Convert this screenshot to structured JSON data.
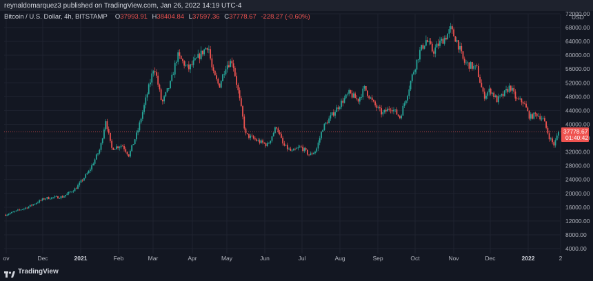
{
  "header": {
    "publisher_line": "reynaldomarquez3 published on TradingView.com, Jan 26, 2022 14:19 UTC-4"
  },
  "legend": {
    "symbol": "Bitcoin / U.S. Dollar, 4h, BITSTAMP",
    "o_label": "O",
    "o_value": "37993.91",
    "h_label": "H",
    "h_value": "38404.84",
    "l_label": "L",
    "l_value": "37597.36",
    "c_label": "C",
    "c_value": "37778.67",
    "change": "-228.27 (-0.60%)"
  },
  "axis": {
    "currency": "USD",
    "price_label": "37778.67",
    "countdown": "01:40:42"
  },
  "footer": {
    "brand": "TradingView"
  },
  "colors": {
    "up": "#26a69a",
    "down": "#ef5350",
    "background": "#131722",
    "grid": "#1f2330"
  },
  "chart_data": {
    "type": "candlestick",
    "title": "Bitcoin / U.S. Dollar, 4h, BITSTAMP",
    "ylim": [
      4000,
      72000
    ],
    "yticks": [
      4000,
      8000,
      12000,
      16000,
      20000,
      24000,
      28000,
      32000,
      36000,
      40000,
      44000,
      48000,
      52000,
      56000,
      60000,
      64000,
      68000,
      72000
    ],
    "ytick_labels": [
      "4000.00",
      "8000.00",
      "12000.00",
      "16000.00",
      "20000.00",
      "24000.00",
      "28000.00",
      "32000.00",
      "36000.00",
      "40000.00",
      "44000.00",
      "48000.00",
      "52000.00",
      "56000.00",
      "60000.00",
      "64000.00",
      "68000.00",
      "72000.00"
    ],
    "xticks": [
      "ov",
      "Dec",
      "2021",
      "Feb",
      "Mar",
      "Apr",
      "May",
      "Jun",
      "Jul",
      "Aug",
      "Sep",
      "Oct",
      "Nov",
      "Dec",
      "2022",
      "2"
    ],
    "xtick_bold": [
      false,
      false,
      true,
      false,
      false,
      false,
      false,
      false,
      false,
      false,
      false,
      false,
      false,
      false,
      true,
      false
    ],
    "last_price": 37778.67,
    "path_points": [
      {
        "t": 0.0,
        "p": 13800
      },
      {
        "t": 1.0,
        "p": 16000
      },
      {
        "t": 1.8,
        "p": 18600
      },
      {
        "t": 2.6,
        "p": 19000
      },
      {
        "t": 3.2,
        "p": 21500
      },
      {
        "t": 3.8,
        "p": 26500
      },
      {
        "t": 4.3,
        "p": 33000
      },
      {
        "t": 4.55,
        "p": 41500
      },
      {
        "t": 4.8,
        "p": 33000
      },
      {
        "t": 5.3,
        "p": 34000
      },
      {
        "t": 5.6,
        "p": 31000
      },
      {
        "t": 6.0,
        "p": 38000
      },
      {
        "t": 6.4,
        "p": 48000
      },
      {
        "t": 6.75,
        "p": 57000
      },
      {
        "t": 7.1,
        "p": 46000
      },
      {
        "t": 7.5,
        "p": 52000
      },
      {
        "t": 7.8,
        "p": 60000
      },
      {
        "t": 8.3,
        "p": 56000
      },
      {
        "t": 8.7,
        "p": 59000
      },
      {
        "t": 9.2,
        "p": 63000
      },
      {
        "t": 9.4,
        "p": 55000
      },
      {
        "t": 9.7,
        "p": 51000
      },
      {
        "t": 10.0,
        "p": 57000
      },
      {
        "t": 10.3,
        "p": 58500
      },
      {
        "t": 10.6,
        "p": 48000
      },
      {
        "t": 10.9,
        "p": 37000
      },
      {
        "t": 11.2,
        "p": 36000
      },
      {
        "t": 11.5,
        "p": 35000
      },
      {
        "t": 11.9,
        "p": 34000
      },
      {
        "t": 12.3,
        "p": 39500
      },
      {
        "t": 12.6,
        "p": 34000
      },
      {
        "t": 13.0,
        "p": 32000
      },
      {
        "t": 13.4,
        "p": 33500
      },
      {
        "t": 13.8,
        "p": 31000
      },
      {
        "t": 14.1,
        "p": 32500
      },
      {
        "t": 14.4,
        "p": 39000
      },
      {
        "t": 14.8,
        "p": 42500
      },
      {
        "t": 15.2,
        "p": 46000
      },
      {
        "t": 15.6,
        "p": 49000
      },
      {
        "t": 16.0,
        "p": 47000
      },
      {
        "t": 16.3,
        "p": 50500
      },
      {
        "t": 16.7,
        "p": 46000
      },
      {
        "t": 17.1,
        "p": 43000
      },
      {
        "t": 17.5,
        "p": 45000
      },
      {
        "t": 17.9,
        "p": 42000
      },
      {
        "t": 18.2,
        "p": 48000
      },
      {
        "t": 18.5,
        "p": 55000
      },
      {
        "t": 18.8,
        "p": 61000
      },
      {
        "t": 19.1,
        "p": 64500
      },
      {
        "t": 19.4,
        "p": 61000
      },
      {
        "t": 19.7,
        "p": 63500
      },
      {
        "t": 20.0,
        "p": 65500
      },
      {
        "t": 20.2,
        "p": 67500
      },
      {
        "t": 20.5,
        "p": 64000
      },
      {
        "t": 20.8,
        "p": 58000
      },
      {
        "t": 21.1,
        "p": 57000
      },
      {
        "t": 21.4,
        "p": 56000
      },
      {
        "t": 21.7,
        "p": 48000
      },
      {
        "t": 22.0,
        "p": 50000
      },
      {
        "t": 22.3,
        "p": 47000
      },
      {
        "t": 22.6,
        "p": 48500
      },
      {
        "t": 22.9,
        "p": 51000
      },
      {
        "t": 23.2,
        "p": 47000
      },
      {
        "t": 23.5,
        "p": 46500
      },
      {
        "t": 23.8,
        "p": 42000
      },
      {
        "t": 24.1,
        "p": 43000
      },
      {
        "t": 24.4,
        "p": 41500
      },
      {
        "t": 24.7,
        "p": 36000
      },
      {
        "t": 24.9,
        "p": 34000
      },
      {
        "t": 25.1,
        "p": 37778
      }
    ]
  }
}
